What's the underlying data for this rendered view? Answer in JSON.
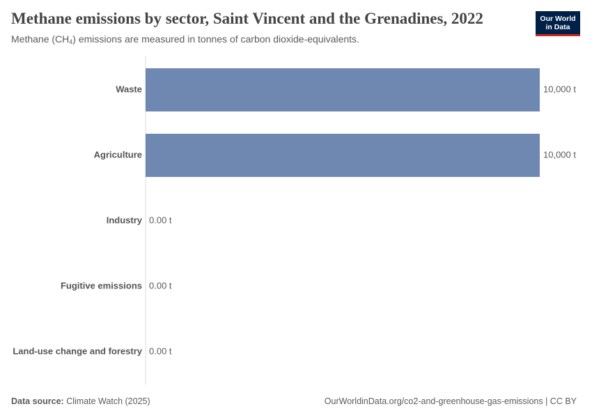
{
  "header": {
    "title": "Methane emissions by sector, Saint Vincent and the Grenadines, 2022",
    "subtitle_prefix": "Methane (CH",
    "subtitle_sub": "4",
    "subtitle_suffix": ") emissions are measured in tonnes of carbon dioxide-equivalents."
  },
  "logo": {
    "line1": "Our World",
    "line2": "in Data"
  },
  "footer": {
    "source_label": "Data source:",
    "source_value": "Climate Watch (2025)",
    "url": "OurWorldinData.org/co2-and-greenhouse-gas-emissions",
    "separator": " | ",
    "license": "CC BY"
  },
  "chart_data": {
    "type": "bar",
    "orientation": "horizontal",
    "categories": [
      "Waste",
      "Agriculture",
      "Industry",
      "Fugitive emissions",
      "Land-use change and forestry"
    ],
    "values": [
      10000,
      10000,
      0,
      0,
      0
    ],
    "value_labels": [
      "10,000 t",
      "10,000 t",
      "0.00 t",
      "0.00 t",
      "0.00 t"
    ],
    "unit": "t",
    "xlim": [
      0,
      10000
    ],
    "bar_color": "#6f88b2",
    "axis_color": "#dddddd",
    "grid": false
  }
}
